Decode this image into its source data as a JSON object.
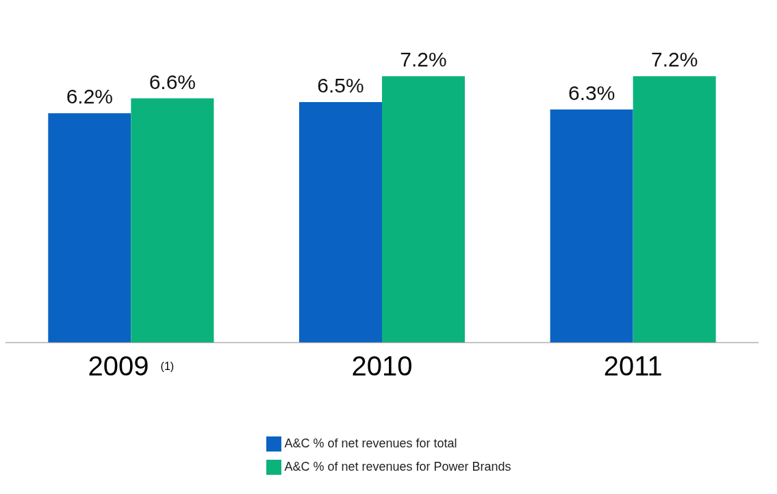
{
  "chart_data": {
    "type": "bar",
    "categories": [
      "2009 $^{(1)}$",
      "2010",
      "2011"
    ],
    "series": [
      {
        "name": "A&C % of net revenues for total",
        "color": "#0a63c2",
        "values": [
          6.2,
          6.5,
          6.3
        ],
        "value_labels": [
          "6.2%",
          "6.5%",
          "6.3%"
        ]
      },
      {
        "name": "A&C % of net revenues for Power Brands",
        "color": "#0bb27c",
        "values": [
          6.6,
          7.2,
          7.2
        ],
        "value_labels": [
          "6.6%",
          "7.2%",
          "7.2%"
        ]
      }
    ],
    "tick_labels": "x",
    "legend": "bottom"
  }
}
